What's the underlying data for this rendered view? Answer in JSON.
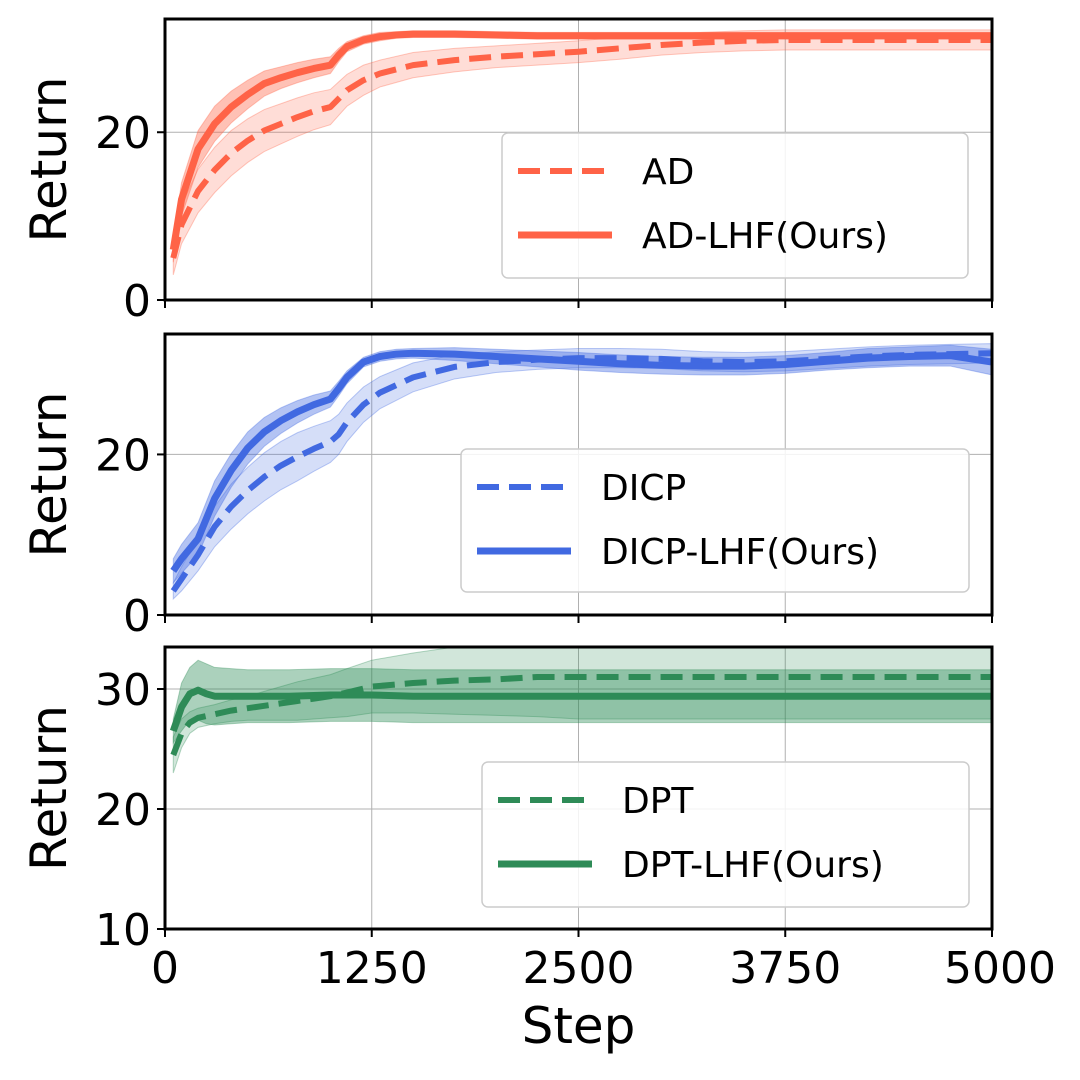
{
  "chart_data": [
    {
      "type": "line",
      "ylabel": "Return",
      "xlabel": "",
      "xlim": [
        0,
        5000
      ],
      "ylim": [
        0,
        33.5
      ],
      "yticks": [
        0,
        20
      ],
      "ytick_labels": [
        "0",
        "20"
      ],
      "xticks": [
        0,
        1250,
        2500,
        3750,
        5000
      ],
      "xtick_labels": [],
      "grid": true,
      "legend_position": "lower-right",
      "color": "#ff6347",
      "series": [
        {
          "name": "AD",
          "style": "dashed",
          "x": [
            50,
            100,
            200,
            300,
            400,
            500,
            600,
            700,
            800,
            900,
            1000,
            1050,
            1100,
            1200,
            1300,
            1500,
            1750,
            2000,
            2250,
            2500,
            2750,
            3000,
            3250,
            3500,
            3750,
            4000,
            4250,
            4500,
            4750,
            5000
          ],
          "y": [
            5,
            9,
            13,
            15.5,
            17.5,
            19,
            20.2,
            21,
            21.8,
            22.5,
            23,
            24,
            25,
            26.2,
            27,
            28,
            28.6,
            29,
            29.3,
            29.6,
            30,
            30.4,
            30.7,
            30.9,
            31,
            31,
            31,
            31,
            31,
            31
          ],
          "band_half_width": [
            2,
            2.3,
            2.6,
            2.7,
            2.7,
            2.6,
            2.5,
            2.4,
            2.3,
            2.2,
            2.1,
            2,
            1.9,
            1.8,
            1.6,
            1.5,
            1.4,
            1.3,
            1.3,
            1.3,
            1.3,
            1.2,
            1.2,
            1.2,
            1.2,
            1.2,
            1.2,
            1.2,
            1.2,
            1.2
          ]
        },
        {
          "name": "AD-LHF(Ours)",
          "style": "solid",
          "x": [
            50,
            100,
            200,
            300,
            400,
            500,
            600,
            700,
            800,
            900,
            1000,
            1050,
            1100,
            1200,
            1300,
            1400,
            1500,
            1750,
            2000,
            2250,
            2500,
            2750,
            3000,
            3250,
            3500,
            3750,
            4000,
            4250,
            4500,
            4750,
            5000
          ],
          "y": [
            6,
            12,
            18,
            21,
            23,
            24.5,
            25.8,
            26.5,
            27.1,
            27.6,
            28,
            29.2,
            30.2,
            31,
            31.4,
            31.6,
            31.7,
            31.7,
            31.6,
            31.5,
            31.5,
            31.5,
            31.5,
            31.5,
            31.5,
            31.5,
            31.5,
            31.5,
            31.5,
            31.5,
            31.5
          ],
          "band_half_width": [
            1.5,
            2,
            2.2,
            2.1,
            1.9,
            1.7,
            1.5,
            1.3,
            1.2,
            1.1,
            1,
            0.8,
            0.6,
            0.5,
            0.5,
            0.4,
            0.4,
            0.4,
            0.4,
            0.4,
            0.4,
            0.4,
            0.4,
            0.4,
            0.4,
            0.4,
            0.4,
            0.4,
            0.4,
            0.4,
            0.4
          ]
        }
      ]
    },
    {
      "type": "line",
      "ylabel": "Return",
      "xlabel": "",
      "xlim": [
        0,
        5000
      ],
      "ylim": [
        0,
        35
      ],
      "yticks": [
        0,
        20
      ],
      "ytick_labels": [
        "0",
        "20"
      ],
      "xticks": [
        0,
        1250,
        2500,
        3750,
        5000
      ],
      "xtick_labels": [],
      "grid": true,
      "legend_position": "lower-right",
      "color": "#4169e1",
      "series": [
        {
          "name": "DICP",
          "style": "dashed",
          "x": [
            50,
            100,
            200,
            300,
            400,
            500,
            600,
            700,
            800,
            900,
            1000,
            1050,
            1100,
            1200,
            1300,
            1500,
            1750,
            2000,
            2250,
            2500,
            2750,
            3000,
            3250,
            3500,
            3750,
            4000,
            4250,
            4500,
            4750,
            5000
          ],
          "y": [
            3,
            4.5,
            7.5,
            11,
            13.5,
            15.5,
            17.2,
            18.6,
            19.7,
            20.7,
            21.6,
            22.5,
            24,
            26.2,
            27.7,
            29.6,
            30.9,
            31.5,
            31.8,
            32,
            32,
            31.9,
            31.6,
            31.5,
            31.6,
            31.9,
            32.2,
            32.4,
            32.5,
            32.6
          ],
          "band_half_width": [
            1,
            1.5,
            2,
            2.5,
            2.8,
            2.9,
            3,
            3,
            3,
            2.8,
            2.6,
            2.5,
            2.4,
            2.2,
            2,
            1.8,
            1.5,
            1.3,
            1.2,
            1.2,
            1.2,
            1.2,
            1.2,
            1.2,
            1.2,
            1.2,
            1.2,
            1.2,
            1.2,
            1.2
          ]
        },
        {
          "name": "DICP-LHF(Ours)",
          "style": "solid",
          "x": [
            50,
            100,
            200,
            300,
            400,
            500,
            600,
            700,
            800,
            900,
            1000,
            1050,
            1100,
            1200,
            1300,
            1400,
            1500,
            1750,
            2000,
            2250,
            2500,
            2750,
            3000,
            3250,
            3500,
            3750,
            4000,
            4250,
            4500,
            4750,
            5000
          ],
          "y": [
            5.5,
            7,
            9.5,
            14.5,
            18,
            20.8,
            22.8,
            24.2,
            25.3,
            26.2,
            26.9,
            28.2,
            29.6,
            31.5,
            32.2,
            32.5,
            32.6,
            32.5,
            32.2,
            31.9,
            31.6,
            31.3,
            31.1,
            31,
            31,
            31.2,
            31.6,
            32,
            32.2,
            32.3,
            31.5
          ],
          "band_half_width": [
            1.5,
            1.8,
            2,
            2.2,
            2.1,
            2,
            1.8,
            1.6,
            1.4,
            1.2,
            1,
            0.9,
            0.8,
            0.6,
            0.6,
            0.6,
            0.6,
            0.8,
            0.9,
            1,
            1.1,
            1.1,
            1.1,
            1.1,
            1.1,
            1.1,
            1.1,
            1.2,
            1.2,
            1.3,
            1.6
          ]
        }
      ]
    },
    {
      "type": "line",
      "ylabel": "Return",
      "xlabel": "Step",
      "xlim": [
        0,
        5000
      ],
      "ylim": [
        10,
        33.5
      ],
      "yticks": [
        10,
        20,
        30
      ],
      "ytick_labels": [
        "10",
        "20",
        "30"
      ],
      "xticks": [
        0,
        1250,
        2500,
        3750,
        5000
      ],
      "xtick_labels": [
        "0",
        "1250",
        "2500",
        "3750",
        "5000"
      ],
      "grid": true,
      "legend_position": "lower-right",
      "color": "#2e8b57",
      "series": [
        {
          "name": "DPT",
          "style": "dashed",
          "x": [
            50,
            100,
            150,
            200,
            300,
            400,
            500,
            600,
            700,
            800,
            900,
            1000,
            1100,
            1250,
            1500,
            1750,
            2000,
            2250,
            2500,
            2750,
            3000,
            3250,
            3500,
            3750,
            4000,
            4250,
            4500,
            4750,
            5000
          ],
          "y": [
            24.5,
            26.3,
            27.2,
            27.6,
            27.9,
            28.2,
            28.4,
            28.6,
            28.8,
            29,
            29.2,
            29.4,
            29.7,
            30.2,
            30.5,
            30.7,
            30.8,
            31,
            31,
            31,
            31,
            31,
            31,
            31,
            31,
            31,
            31,
            31,
            31
          ],
          "band_half_width": [
            1.5,
            1.2,
            0.9,
            0.8,
            0.8,
            0.9,
            1,
            1.2,
            1.4,
            1.6,
            1.7,
            1.8,
            2,
            2.2,
            2.5,
            2.8,
            3,
            3.3,
            3.5,
            3.5,
            3.5,
            3.5,
            3.5,
            3.5,
            3.5,
            3.5,
            3.5,
            3.5,
            3.5
          ]
        },
        {
          "name": "DPT-LHF(Ours)",
          "style": "solid",
          "x": [
            50,
            100,
            150,
            200,
            250,
            300,
            400,
            500,
            750,
            1000,
            1250,
            1500,
            1750,
            2000,
            2500,
            3000,
            3500,
            4000,
            4500,
            5000
          ],
          "y": [
            26.5,
            28.5,
            29.6,
            29.9,
            29.6,
            29.4,
            29.4,
            29.4,
            29.4,
            29.5,
            29.5,
            29.4,
            29.4,
            29.4,
            29.4,
            29.4,
            29.4,
            29.4,
            29.4,
            29.4
          ],
          "band_half_width": [
            1,
            2,
            2.2,
            2.5,
            2.5,
            2.4,
            2.3,
            2.2,
            2.2,
            2.2,
            2.2,
            2.2,
            2.2,
            2.2,
            2.2,
            2.2,
            2.2,
            2.2,
            2.2,
            2.2
          ]
        }
      ]
    }
  ]
}
